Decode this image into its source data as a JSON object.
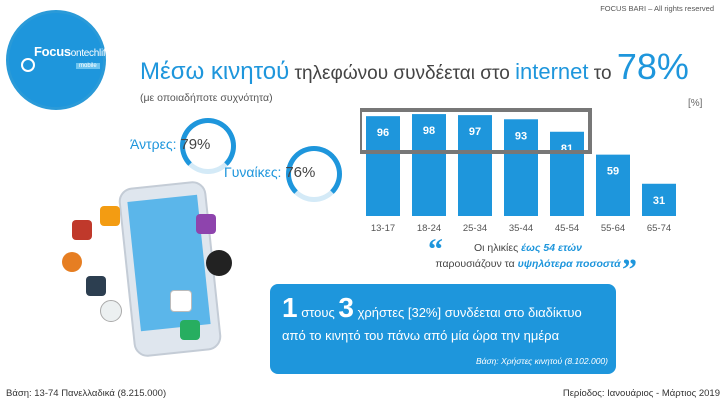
{
  "copyright": "FOCUS BARI – All rights reserved",
  "logo": {
    "brand": "Focus",
    "brand2": "ontechlife",
    "sub": "mobile"
  },
  "title": {
    "part1": "Μέσω κινητού",
    "part2": " τηλεφώνου συνδέεται στο ",
    "part3": "internet",
    "part4": " το ",
    "part5": "78%"
  },
  "subtitle": "(με οποιαδήποτε συχνότητα)",
  "unit": "[%]",
  "gender": {
    "men_label": "Άντρες:",
    "men_value": "79%",
    "men_pct": 79,
    "women_label": "Γυναίκες:",
    "women_value": "76%",
    "women_pct": 76
  },
  "chart_data": {
    "type": "bar",
    "categories": [
      "13-17",
      "18-24",
      "25-34",
      "35-44",
      "45-54",
      "55-64",
      "65-74"
    ],
    "values": [
      96,
      98,
      97,
      93,
      81,
      59,
      31
    ],
    "ylabel": "[%]",
    "ylim": [
      0,
      100
    ],
    "highlight_range": [
      "13-17",
      "45-54"
    ],
    "colors": {
      "bar": "#1e96dc",
      "highlight": "#777777",
      "label": "#ffffff"
    }
  },
  "quote": {
    "line1a": "Οι ηλικίες ",
    "line1b": "έως 54 ετών",
    "line2a": "παρουσιάζουν τα ",
    "line2b": "υψηλότερα ποσοστά"
  },
  "callout": {
    "num1": "1",
    "text1": " στους ",
    "num2": "3",
    "text2": " χρήστες [32%] συνδέεται στο διαδίκτυο",
    "line2": "από το κινητό του πάνω από μία ώρα την ημέρα",
    "base": "Βάση: Χρήστες κινητού (8.102.000)"
  },
  "footer": {
    "left": "Βάση: 13-74 Πανελλαδικά (8.215.000)",
    "right": "Περίοδος: Ιανουάριος - Μάρτιος 2019"
  },
  "colors": {
    "accent": "#1e96dc",
    "light": "#d4eaf7"
  }
}
